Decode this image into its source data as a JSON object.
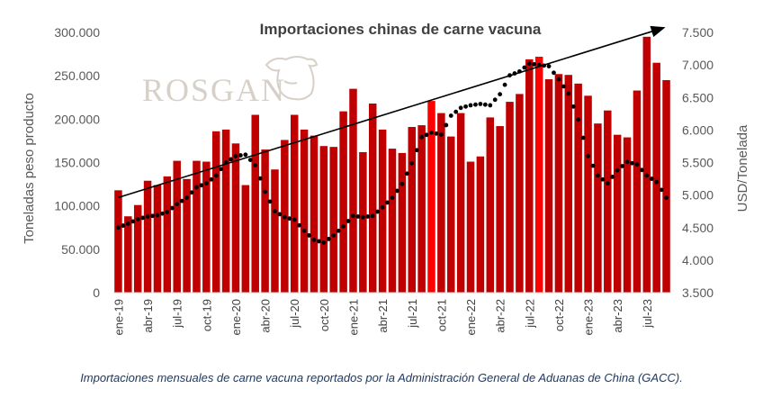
{
  "caption": "Importaciones mensuales de carne vacuna reportados por la Administración General de Aduanas de China (GACC).",
  "logo_text": "ROSGAN",
  "colors": {
    "bar": "#c00000",
    "bar_highlight": "#ff0000",
    "line": "#000000",
    "trend": "#000000"
  },
  "chart_data": {
    "type": "bar",
    "title": "Importaciones chinas de carne vacuna",
    "ylabel": "Toneladas peso producto",
    "y2label": "USD/Tonelada",
    "ylim": [
      0,
      300000
    ],
    "y2lim": [
      3500,
      7500
    ],
    "ytick_labels": [
      "0",
      "50.000",
      "100.000",
      "150.000",
      "200.000",
      "250.000",
      "300.000"
    ],
    "y2tick_labels": [
      "3.500",
      "4.000",
      "4.500",
      "5.000",
      "5.500",
      "6.000",
      "6.500",
      "7.000",
      "7.500"
    ],
    "x": [
      "ene-19",
      "feb-19",
      "mar-19",
      "abr-19",
      "may-19",
      "jun-19",
      "jul-19",
      "ago-19",
      "sep-19",
      "oct-19",
      "nov-19",
      "dic-19",
      "ene-20",
      "feb-20",
      "mar-20",
      "abr-20",
      "may-20",
      "jun-20",
      "jul-20",
      "ago-20",
      "sep-20",
      "oct-20",
      "nov-20",
      "dic-20",
      "ene-21",
      "feb-21",
      "mar-21",
      "abr-21",
      "may-21",
      "jun-21",
      "jul-21",
      "ago-21",
      "sep-21",
      "oct-21",
      "nov-21",
      "dic-21",
      "ene-22",
      "feb-22",
      "mar-22",
      "abr-22",
      "may-22",
      "jun-22",
      "jul-22",
      "ago-22",
      "sep-22",
      "oct-22",
      "nov-22",
      "dic-22",
      "ene-23",
      "feb-23",
      "mar-23",
      "abr-23",
      "may-23",
      "jun-23",
      "jul-23",
      "ago-23",
      "sep-23"
    ],
    "xtick_labels": [
      "ene-19",
      "abr-19",
      "jul-19",
      "oct-19",
      "ene-20",
      "abr-20",
      "jul-20",
      "oct-20",
      "ene-21",
      "abr-21",
      "jul-21",
      "oct-21",
      "ene-22",
      "abr-22",
      "jul-22",
      "oct-22",
      "ene-23",
      "abr-23",
      "jul-23"
    ],
    "series": [
      {
        "type": "bar",
        "axis": "left",
        "values": [
          118000,
          88000,
          101000,
          129000,
          124000,
          134000,
          152000,
          131000,
          152000,
          151000,
          186000,
          188000,
          172000,
          124000,
          205000,
          165000,
          142000,
          176000,
          205000,
          188000,
          181000,
          169000,
          168000,
          209000,
          235000,
          162000,
          218000,
          188000,
          166000,
          161000,
          191000,
          193000,
          221000,
          207000,
          180000,
          207000,
          151000,
          157000,
          202000,
          192000,
          220000,
          229000,
          269000,
          272000,
          246000,
          252000,
          251000,
          241000,
          227000,
          195000,
          210000,
          182000,
          179000,
          233000,
          295000,
          265000,
          245000
        ],
        "highlight_indices": [
          32,
          43
        ]
      },
      {
        "type": "line",
        "style": "dotted",
        "axis": "right",
        "values": [
          4500,
          4560,
          4630,
          4670,
          4690,
          4740,
          4860,
          4960,
          5120,
          5180,
          5300,
          5500,
          5600,
          5620,
          5460,
          5050,
          4750,
          4660,
          4620,
          4450,
          4310,
          4270,
          4380,
          4520,
          4680,
          4660,
          4680,
          4810,
          4960,
          5170,
          5490,
          5890,
          5960,
          5930,
          6220,
          6340,
          6380,
          6400,
          6380,
          6550,
          6840,
          6900,
          7020,
          7000,
          6980,
          6780,
          6560,
          6160,
          5600,
          5300,
          5180,
          5380,
          5510,
          5470,
          5300,
          5200,
          4960
        ]
      },
      {
        "type": "trend",
        "axis": "left",
        "start_value": 118000,
        "end_value": 305000
      }
    ]
  }
}
